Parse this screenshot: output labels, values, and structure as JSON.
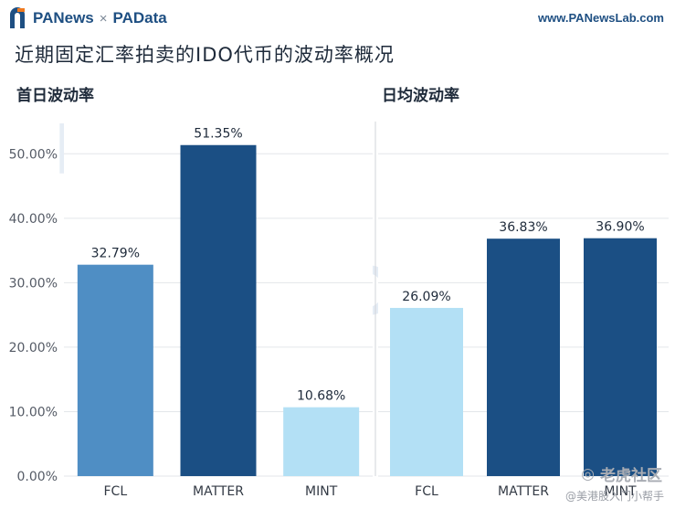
{
  "header": {
    "brand_left": "PANews",
    "brand_sep": "×",
    "brand_right": "PAData",
    "url": "www.PANewsLab.com"
  },
  "title": "近期固定汇率拍卖的IDO代币的波动率概况",
  "watermark": {
    "top": "PANews",
    "bottom": "PAData"
  },
  "credit": {
    "logo": "老虎社区",
    "author": "@美港股入门小帮手"
  },
  "colors": {
    "FCL_left": "#4f8ec4",
    "MATTER": "#1b4f84",
    "MINT_left": "#b3e0f5",
    "FCL_right": "#b3e0f5",
    "MINT_right": "#1b4f84"
  },
  "chart_data": [
    {
      "type": "bar",
      "title": "首日波动率",
      "categories": [
        "FCL",
        "MATTER",
        "MINT"
      ],
      "values": [
        32.79,
        51.35,
        10.68
      ],
      "value_labels": [
        "32.79%",
        "51.35%",
        "10.68%"
      ],
      "ylim": [
        0,
        55
      ],
      "yticks": [
        0,
        10,
        20,
        30,
        40,
        50
      ],
      "ytick_labels": [
        "0.00%",
        "10.00%",
        "20.00%",
        "30.00%",
        "40.00%",
        "50.00%"
      ],
      "bar_colors": [
        "#4f8ec4",
        "#1b4f84",
        "#b3e0f5"
      ]
    },
    {
      "type": "bar",
      "title": "日均波动率",
      "categories": [
        "FCL",
        "MATTER",
        "MINT"
      ],
      "values": [
        26.09,
        36.83,
        36.9
      ],
      "value_labels": [
        "26.09%",
        "36.83%",
        "36.90%"
      ],
      "ylim": [
        0,
        55
      ],
      "bar_colors": [
        "#b3e0f5",
        "#1b4f84",
        "#1b4f84"
      ]
    }
  ]
}
